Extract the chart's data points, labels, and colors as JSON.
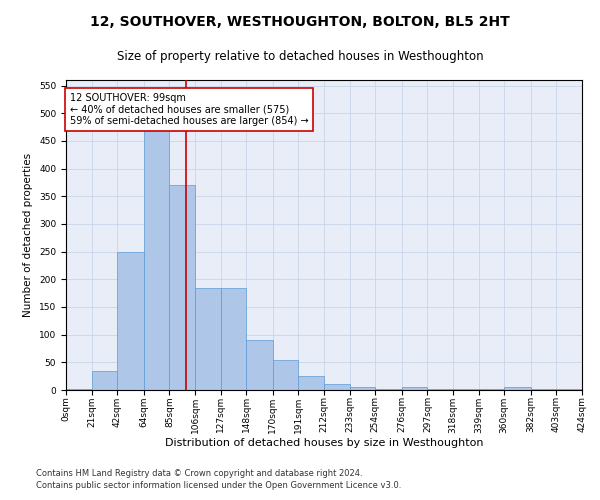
{
  "title": "12, SOUTHOVER, WESTHOUGHTON, BOLTON, BL5 2HT",
  "subtitle": "Size of property relative to detached houses in Westhoughton",
  "xlabel": "Distribution of detached houses by size in Westhoughton",
  "ylabel": "Number of detached properties",
  "footnote1": "Contains HM Land Registry data © Crown copyright and database right 2024.",
  "footnote2": "Contains public sector information licensed under the Open Government Licence v3.0.",
  "bin_edges": [
    0,
    21,
    42,
    64,
    85,
    106,
    127,
    148,
    170,
    191,
    212,
    233,
    254,
    276,
    297,
    318,
    339,
    360,
    382,
    403,
    424
  ],
  "bar_heights": [
    2,
    35,
    250,
    510,
    370,
    185,
    185,
    90,
    55,
    25,
    10,
    5,
    2,
    5,
    2,
    2,
    2,
    5,
    2,
    2
  ],
  "bar_color": "#aec6e8",
  "bar_edge_color": "#5b9bd5",
  "grid_color": "#c8d4e8",
  "background_color": "#e8edf7",
  "property_size": 99,
  "red_line_color": "#cc0000",
  "annotation_text": "12 SOUTHOVER: 99sqm\n← 40% of detached houses are smaller (575)\n59% of semi-detached houses are larger (854) →",
  "annotation_box_color": "#ffffff",
  "annotation_box_edge": "#cc0000",
  "ylim": [
    0,
    560
  ],
  "yticks": [
    0,
    50,
    100,
    150,
    200,
    250,
    300,
    350,
    400,
    450,
    500,
    550
  ],
  "title_fontsize": 10,
  "subtitle_fontsize": 8.5,
  "xlabel_fontsize": 8,
  "ylabel_fontsize": 7.5,
  "tick_label_fontsize": 6.5,
  "annotation_fontsize": 7,
  "footnote_fontsize": 6
}
